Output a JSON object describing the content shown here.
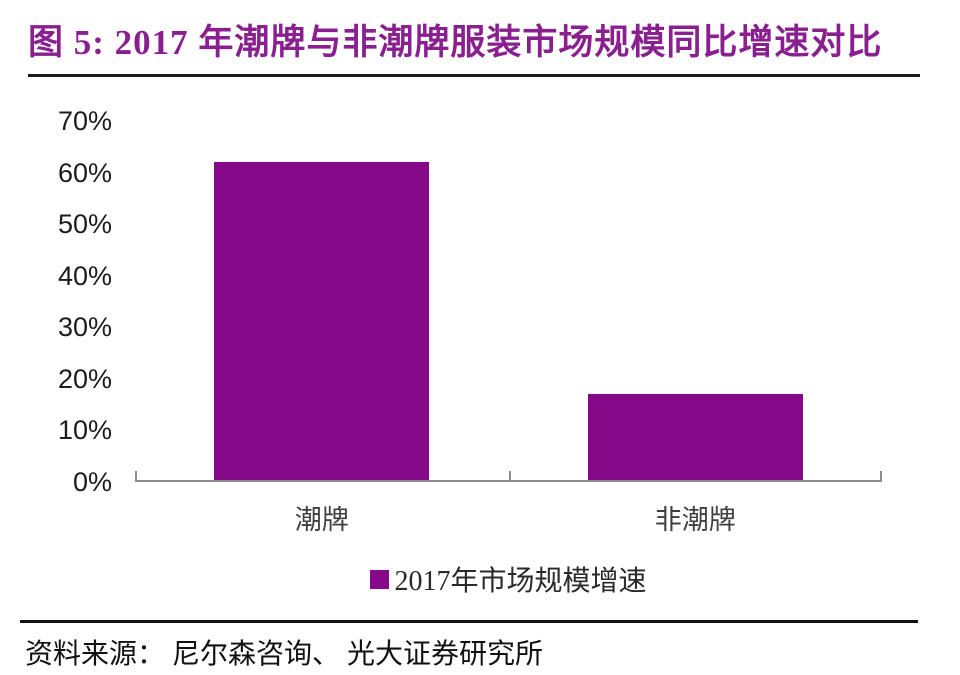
{
  "title": {
    "text": "图 5: 2017 年潮牌与非潮牌服装市场规模同比增速对比"
  },
  "chart_data": {
    "type": "bar",
    "title": "图 5: 2017 年潮牌与非潮牌服装市场规模同比增速对比",
    "categories": [
      "潮牌",
      "非潮牌"
    ],
    "values": [
      62,
      17
    ],
    "series_name": "2017年市场规模增速",
    "unit": "%",
    "ylim": [
      0,
      70
    ],
    "ytick_step": 10,
    "yticks": [
      "0%",
      "10%",
      "20%",
      "30%",
      "40%",
      "50%",
      "60%",
      "70%"
    ],
    "grid": false,
    "legend_position": "bottom-center",
    "bar_color": "#86098a",
    "axis_color": "#8c8c8c"
  },
  "legend": {
    "label": "2017年市场规模增速",
    "swatch_color": "#86098a"
  },
  "source": {
    "text": "资料来源： 尼尔森咨询、 光大证券研究所"
  },
  "colors": {
    "title": "#8a2090",
    "bar": "#86098a",
    "axis": "#8c8c8c",
    "rule": "#1a1a1a",
    "tick_label": "#1c1c1c",
    "category_label": "#404040"
  }
}
